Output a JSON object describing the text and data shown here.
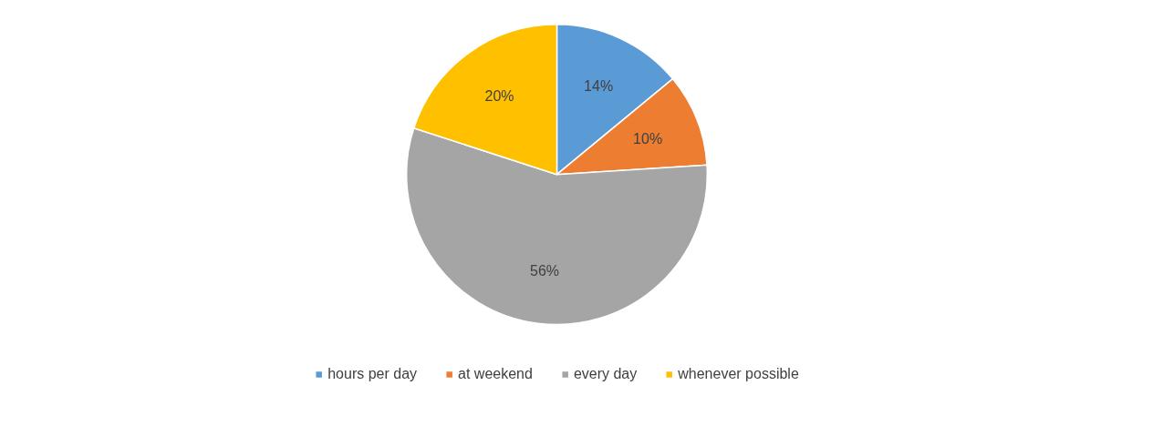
{
  "chart_data": {
    "type": "pie",
    "categories": [
      "hours per day",
      "at weekend",
      "every day",
      "whenever possible"
    ],
    "values": [
      14,
      10,
      56,
      20
    ],
    "colors": [
      "#5b9bd5",
      "#ed7d31",
      "#a5a5a5",
      "#ffc000"
    ],
    "value_labels": [
      "14%",
      "10%",
      "56%",
      "20%"
    ],
    "legend": "bottom"
  }
}
